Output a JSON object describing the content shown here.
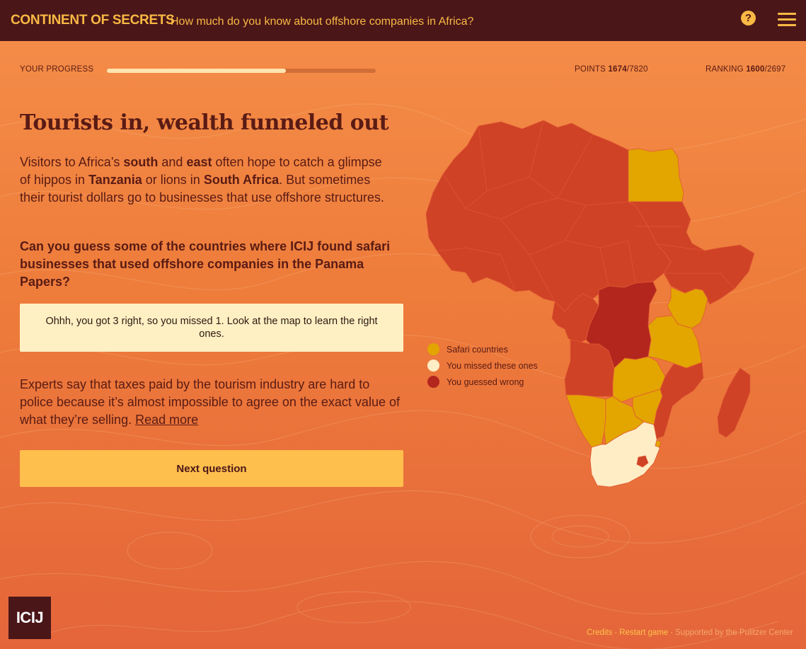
{
  "header": {
    "brand": "CONTINENT OF SECRETS",
    "tagline": "How much do you know about offshore companies in Africa?",
    "help_icon": "question-circle-icon",
    "menu_icon": "hamburger-menu-icon"
  },
  "progress": {
    "label": "YOUR PROGRESS",
    "fraction": 0.665,
    "points_label": "POINTS",
    "points_value": "1674",
    "points_total": "/7820",
    "ranking_label": "RANKING",
    "ranking_value": "1600",
    "ranking_total": "/2697"
  },
  "content": {
    "headline": "Tourists in, wealth funneled out",
    "intro": {
      "p1": "Visitors to Africa’s ",
      "b1": "south",
      "p2": " and ",
      "b2": "east",
      "p3": " often hope to catch a glimpse of hippos in ",
      "b3": "Tanzania",
      "p4": " or lions in ",
      "b4": "South Africa",
      "p5": ". But sometimes their tourist dollars go to businesses that use offshore structures."
    },
    "question": "Can you guess some of the countries where ICIJ found safari businesses that used offshore companies in the Panama Papers?",
    "feedback": "Ohhh, you got 3 right, so you missed 1. Look at the map to learn the right ones.",
    "experts_text": "Experts say that taxes paid by the tourism industry are hard to police because it’s almost impossible to agree on the exact value of what they’re selling. ",
    "read_more": "Read more",
    "next_button": "Next question"
  },
  "legend": [
    {
      "label": "Safari countries",
      "color": "#e3a500"
    },
    {
      "label": "You missed these ones",
      "color": "#ffedc6"
    },
    {
      "label": "You guessed wrong",
      "color": "#b3261e"
    }
  ],
  "colors": {
    "topbar": "#4a1618",
    "accent": "#f9b944",
    "country_default": "#cf4226",
    "safari": "#e3a500",
    "missed": "#ffedc6",
    "wrong": "#b3261e"
  },
  "footer": {
    "credits": "Credits",
    "restart": "Restart game",
    "support": "Supported by the Pulitzer Center",
    "separator": "·"
  },
  "logo": "ICIJ"
}
